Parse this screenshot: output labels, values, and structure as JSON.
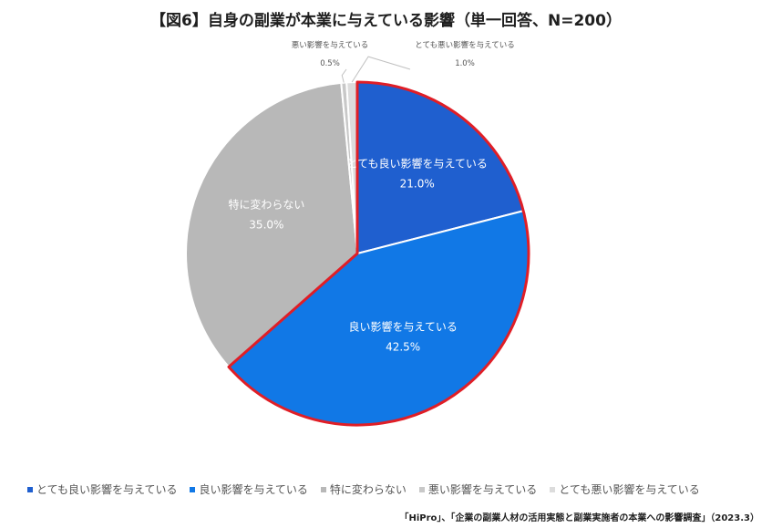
{
  "chart_data": {
    "type": "pie",
    "title": "【図6】自身の副業が本業に与えている影響（単一回答、N=200）",
    "slices": [
      {
        "label": "とても良い影響を与えている",
        "value": 21.0,
        "value_label": "21.0%",
        "color": "#1f5fcf",
        "highlighted": true
      },
      {
        "label": "良い影響を与えている",
        "value": 42.5,
        "value_label": "42.5%",
        "color": "#1178e6",
        "highlighted": true
      },
      {
        "label": "特に変わらない",
        "value": 35.0,
        "value_label": "35.0%",
        "color": "#b8b8b8",
        "highlighted": false
      },
      {
        "label": "悪い影響を与えている",
        "value": 0.5,
        "value_label": "0.5%",
        "color": "#c8c8c8",
        "highlighted": false
      },
      {
        "label": "とても悪い影響を与えている",
        "value": 1.0,
        "value_label": "1.0%",
        "color": "#dcdcdc",
        "highlighted": false
      }
    ],
    "highlight_color": "#e01e26",
    "legend_position": "bottom"
  },
  "source": "「HiPro」、「企業の副業人材の活用実態と副業実施者の本業への影響調査」（2023.3）"
}
